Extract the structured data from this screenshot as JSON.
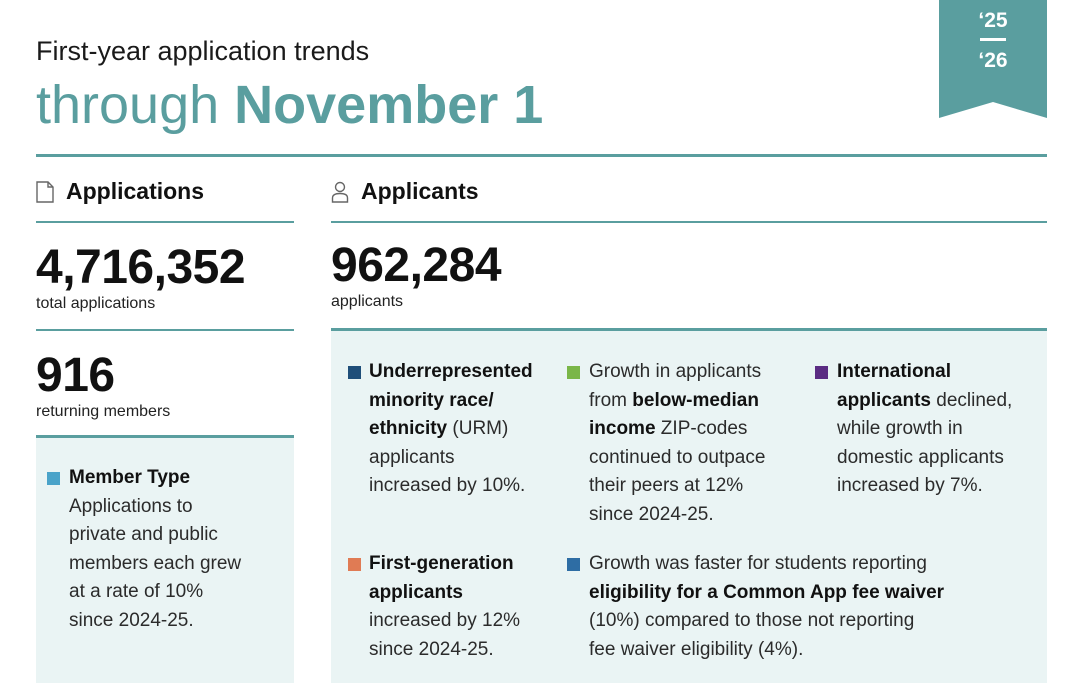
{
  "header": {
    "subtitle": "First-year application trends",
    "title_prefix": "through ",
    "title_bold": "November 1",
    "ribbon_top": "‘25",
    "ribbon_bottom": "‘26"
  },
  "colors": {
    "teal": "#5a9e9f",
    "panel": "#eaf4f4",
    "navy": "#1f4e79",
    "green": "#7ab648",
    "purple": "#5b2c83",
    "orange": "#e07b54",
    "blue": "#2e6da4",
    "lightblue": "#4aa3c9"
  },
  "applications": {
    "heading": "Applications",
    "total_value": "4,716,352",
    "total_label": "total applications",
    "returning_value": "916",
    "returning_label": "returning members",
    "member_type": {
      "title": "Member Type",
      "lines": [
        "Applications to",
        "private and public",
        "members each grew",
        "at a rate of 10%",
        "since 2024-25."
      ]
    }
  },
  "applicants": {
    "heading": "Applicants",
    "value": "962,284",
    "label": "applicants",
    "notes": {
      "urm": {
        "bold1": "Underrepresented",
        "bold2": "minority race/",
        "bold3": "ethnicity",
        "rest3": " (URM)",
        "line4": "applicants",
        "line5": "increased by 10%."
      },
      "income": {
        "line1": "Growth in applicants",
        "pre2": "from ",
        "bold2": "below-median",
        "bold3": "income",
        "rest3": " ZIP-codes",
        "line4": "continued to outpace",
        "line5": "their peers at 12%",
        "line6": "since 2024-25."
      },
      "international": {
        "bold1": "International",
        "bold2": "applicants",
        "rest2": " declined,",
        "line3": "while growth in",
        "line4": "domestic applicants",
        "line5": "increased by 7%."
      },
      "firstgen": {
        "bold1": "First-generation",
        "bold2": "applicants",
        "line3": "increased by 12%",
        "line4": "since 2024-25."
      },
      "feewaiver": {
        "line1": "Growth was faster for students reporting",
        "bold2": "eligibility for a Common App fee waiver",
        "line3": "(10%) compared to those not reporting",
        "line4": "fee waiver eligibility (4%)."
      }
    }
  }
}
